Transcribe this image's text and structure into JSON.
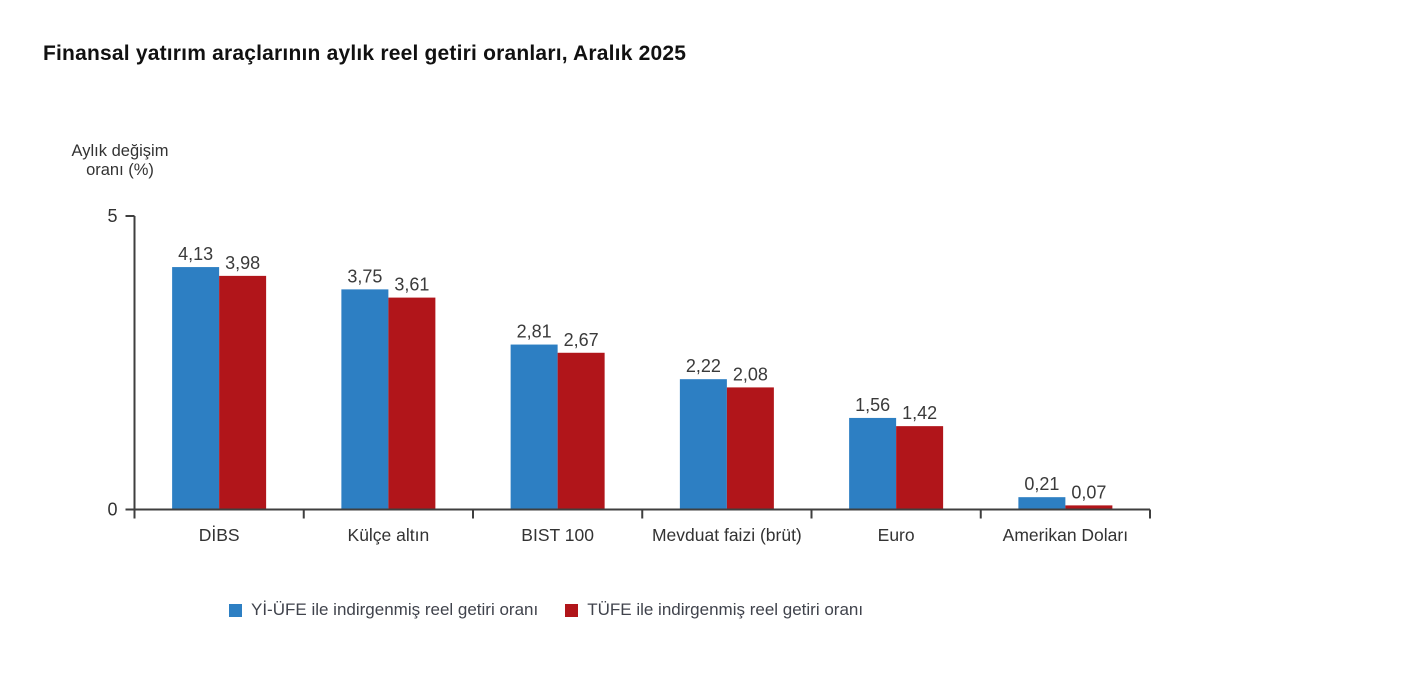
{
  "chart_data": {
    "type": "bar",
    "title": "Finansal yatırım araçlarının aylık reel getiri oranları, Aralık 2025",
    "y_axis_label_lines": [
      "Aylık değişim",
      "oranı (%)"
    ],
    "categories": [
      "DİBS",
      "Külçe altın",
      "BIST 100",
      "Mevduat faizi (brüt)",
      "Euro",
      "Amerikan Doları"
    ],
    "series": [
      {
        "key": "yi-ufe",
        "name": "Yİ-ÜFE ile indirgenmiş reel getiri oranı",
        "color": "#2D7FC3",
        "values": [
          4.13,
          3.75,
          2.81,
          2.22,
          1.56,
          0.21
        ],
        "value_labels": [
          "4,13",
          "3,75",
          "2,81",
          "2,22",
          "1,56",
          "0,21"
        ]
      },
      {
        "key": "tufe",
        "name": "TÜFE ile indirgenmiş reel getiri oranı",
        "color": "#B1151A",
        "values": [
          3.98,
          3.61,
          2.67,
          2.08,
          1.42,
          0.07
        ],
        "value_labels": [
          "3,98",
          "3,61",
          "2,67",
          "2,08",
          "1,42",
          "0,07"
        ]
      }
    ],
    "ylim": [
      0,
      5
    ],
    "y_ticks": [
      5,
      0
    ],
    "y_tick_labels": [
      "5",
      "0"
    ],
    "grid": false,
    "legend_position": "bottom",
    "axis_color": "#3f3f3f",
    "text_color": "#3a3a3a"
  }
}
